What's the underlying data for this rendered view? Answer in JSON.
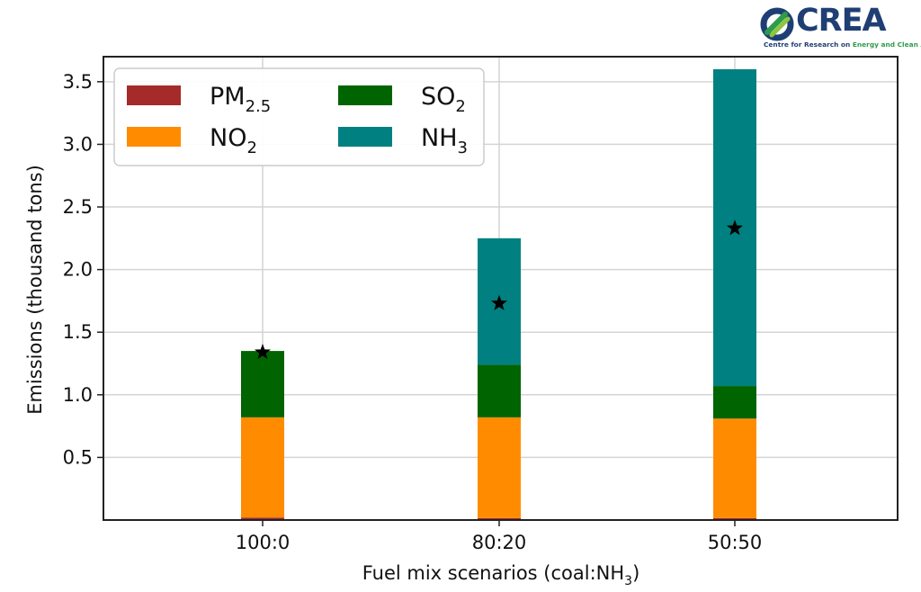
{
  "logo": {
    "word": "CREA",
    "tagline_part1": "Centre for Research on ",
    "tagline_part2": "Energy and Clean Air"
  },
  "chart_data": {
    "type": "bar",
    "stacked": true,
    "categories": [
      "100:0",
      "80:20",
      "50:50"
    ],
    "xlabel": "Fuel mix scenarios (coal:NH",
    "xlabel_sub": "3",
    "xlabel_end": ")",
    "ylabel": "Emissions (thousand tons)",
    "ylim": [
      0,
      3.7
    ],
    "yticks": [
      0.5,
      1.0,
      1.5,
      2.0,
      2.5,
      3.0,
      3.5
    ],
    "ytick_labels": [
      "0.5",
      "1.0",
      "1.5",
      "2.0",
      "2.5",
      "3.0",
      "3.5"
    ],
    "grid": true,
    "legend_position": "top-left",
    "series": [
      {
        "name": "PM",
        "sub": "2.5",
        "color": "#a52a2a",
        "values": [
          0.02,
          0.015,
          0.015
        ]
      },
      {
        "name": "NO",
        "sub": "2",
        "color": "#ff8c00",
        "values": [
          0.8,
          0.805,
          0.795
        ]
      },
      {
        "name": "SO",
        "sub": "2",
        "color": "#006400",
        "values": [
          0.53,
          0.42,
          0.26
        ]
      },
      {
        "name": "NH",
        "sub": "3",
        "color": "#008080",
        "values": [
          0.0,
          1.01,
          2.53
        ]
      }
    ],
    "markers": {
      "symbol": "star",
      "color": "#000000",
      "values": [
        1.34,
        1.73,
        2.33
      ]
    }
  }
}
